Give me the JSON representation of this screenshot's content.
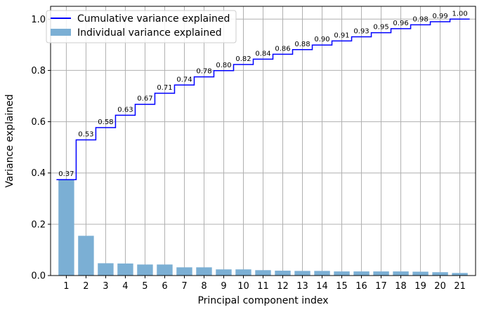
{
  "chart_data": {
    "type": "bar",
    "xlabel": "Principal component index",
    "ylabel": "Variance explained",
    "categories": [
      "1",
      "2",
      "3",
      "4",
      "5",
      "6",
      "7",
      "8",
      "9",
      "10",
      "11",
      "12",
      "13",
      "14",
      "15",
      "16",
      "17",
      "18",
      "19",
      "20",
      "21"
    ],
    "series": [
      {
        "name": "Individual variance explained",
        "type": "bar",
        "color": "#7bafd4",
        "values": [
          0.374,
          0.155,
          0.048,
          0.047,
          0.043,
          0.043,
          0.032,
          0.032,
          0.024,
          0.024,
          0.021,
          0.019,
          0.018,
          0.018,
          0.016,
          0.016,
          0.016,
          0.016,
          0.015,
          0.013,
          0.01
        ]
      },
      {
        "name": "Cumulative variance explained",
        "type": "step",
        "color": "#0000ff",
        "values": [
          0.374,
          0.529,
          0.577,
          0.625,
          0.668,
          0.711,
          0.743,
          0.775,
          0.799,
          0.823,
          0.844,
          0.863,
          0.881,
          0.899,
          0.915,
          0.931,
          0.947,
          0.963,
          0.978,
          0.99,
          1.0
        ],
        "labels": [
          "0.37",
          "0.53",
          "0.58",
          "0.63",
          "0.67",
          "0.71",
          "0.74",
          "0.78",
          "0.80",
          "0.82",
          "0.84",
          "0.86",
          "0.88",
          "0.90",
          "0.91",
          "0.93",
          "0.95",
          "0.96",
          "0.98",
          "0.99",
          "1.00"
        ]
      }
    ],
    "ylim": [
      0,
      1.05
    ],
    "yticks": [
      "0.0",
      "0.2",
      "0.4",
      "0.6",
      "0.8",
      "1.0"
    ],
    "grid": true,
    "legend_position": "top-left"
  }
}
